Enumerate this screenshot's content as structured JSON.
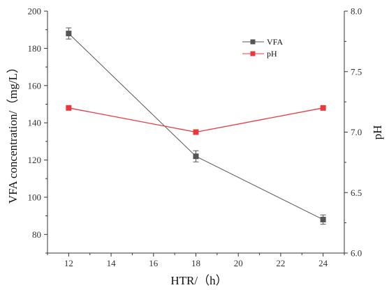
{
  "chart_data": {
    "type": "line",
    "title": "",
    "xlabel": "HTR/（h）",
    "ylabel_left": "VFA concentration/（mg/L）",
    "ylabel_right": "pH",
    "xlim": [
      11,
      25
    ],
    "x_ticks": [
      12,
      14,
      16,
      18,
      20,
      22,
      24
    ],
    "ylim_left": [
      70,
      200
    ],
    "y_ticks_left": [
      80,
      100,
      120,
      140,
      160,
      180,
      200
    ],
    "ylim_right": [
      6.0,
      8.0
    ],
    "y_ticks_right": [
      "6.0",
      "6.5",
      "7.0",
      "7.5",
      "8.0"
    ],
    "grid": false,
    "legend_position": "top-right",
    "series": [
      {
        "name": "VFA",
        "axis": "left",
        "color": "#555555",
        "marker": "square",
        "x": [
          12,
          18,
          24
        ],
        "y": [
          188,
          122,
          88
        ],
        "error": [
          3,
          3,
          2.5
        ]
      },
      {
        "name": "pH",
        "axis": "right",
        "color": "#e8383d",
        "marker": "square",
        "x": [
          12,
          18,
          24
        ],
        "y": [
          7.2,
          7.0,
          7.2
        ]
      }
    ]
  }
}
